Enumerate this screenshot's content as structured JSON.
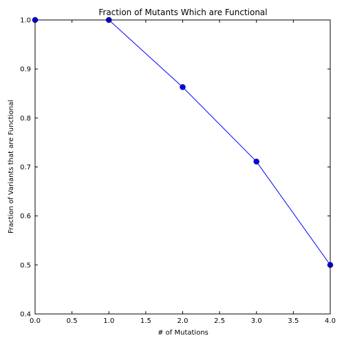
{
  "chart_data": {
    "type": "line",
    "title": "Fraction of Mutants Which are Functional",
    "xlabel": "# of Mutations",
    "ylabel": "Fraction of Variants that are Functional",
    "xlim": [
      0.0,
      4.0
    ],
    "ylim": [
      0.4,
      1.0
    ],
    "x_ticks": [
      "0.0",
      "0.5",
      "1.0",
      "1.5",
      "2.0",
      "2.5",
      "3.0",
      "3.5",
      "4.0"
    ],
    "y_ticks": [
      "0.4",
      "0.5",
      "0.6",
      "0.7",
      "0.8",
      "0.9",
      "1.0"
    ],
    "grid": false,
    "series": [
      {
        "x": [
          0,
          1,
          2,
          3,
          4
        ],
        "y": [
          1.0,
          1.0,
          0.863,
          0.711,
          0.5
        ],
        "color": "#0000ff",
        "marker": "circle"
      }
    ]
  }
}
